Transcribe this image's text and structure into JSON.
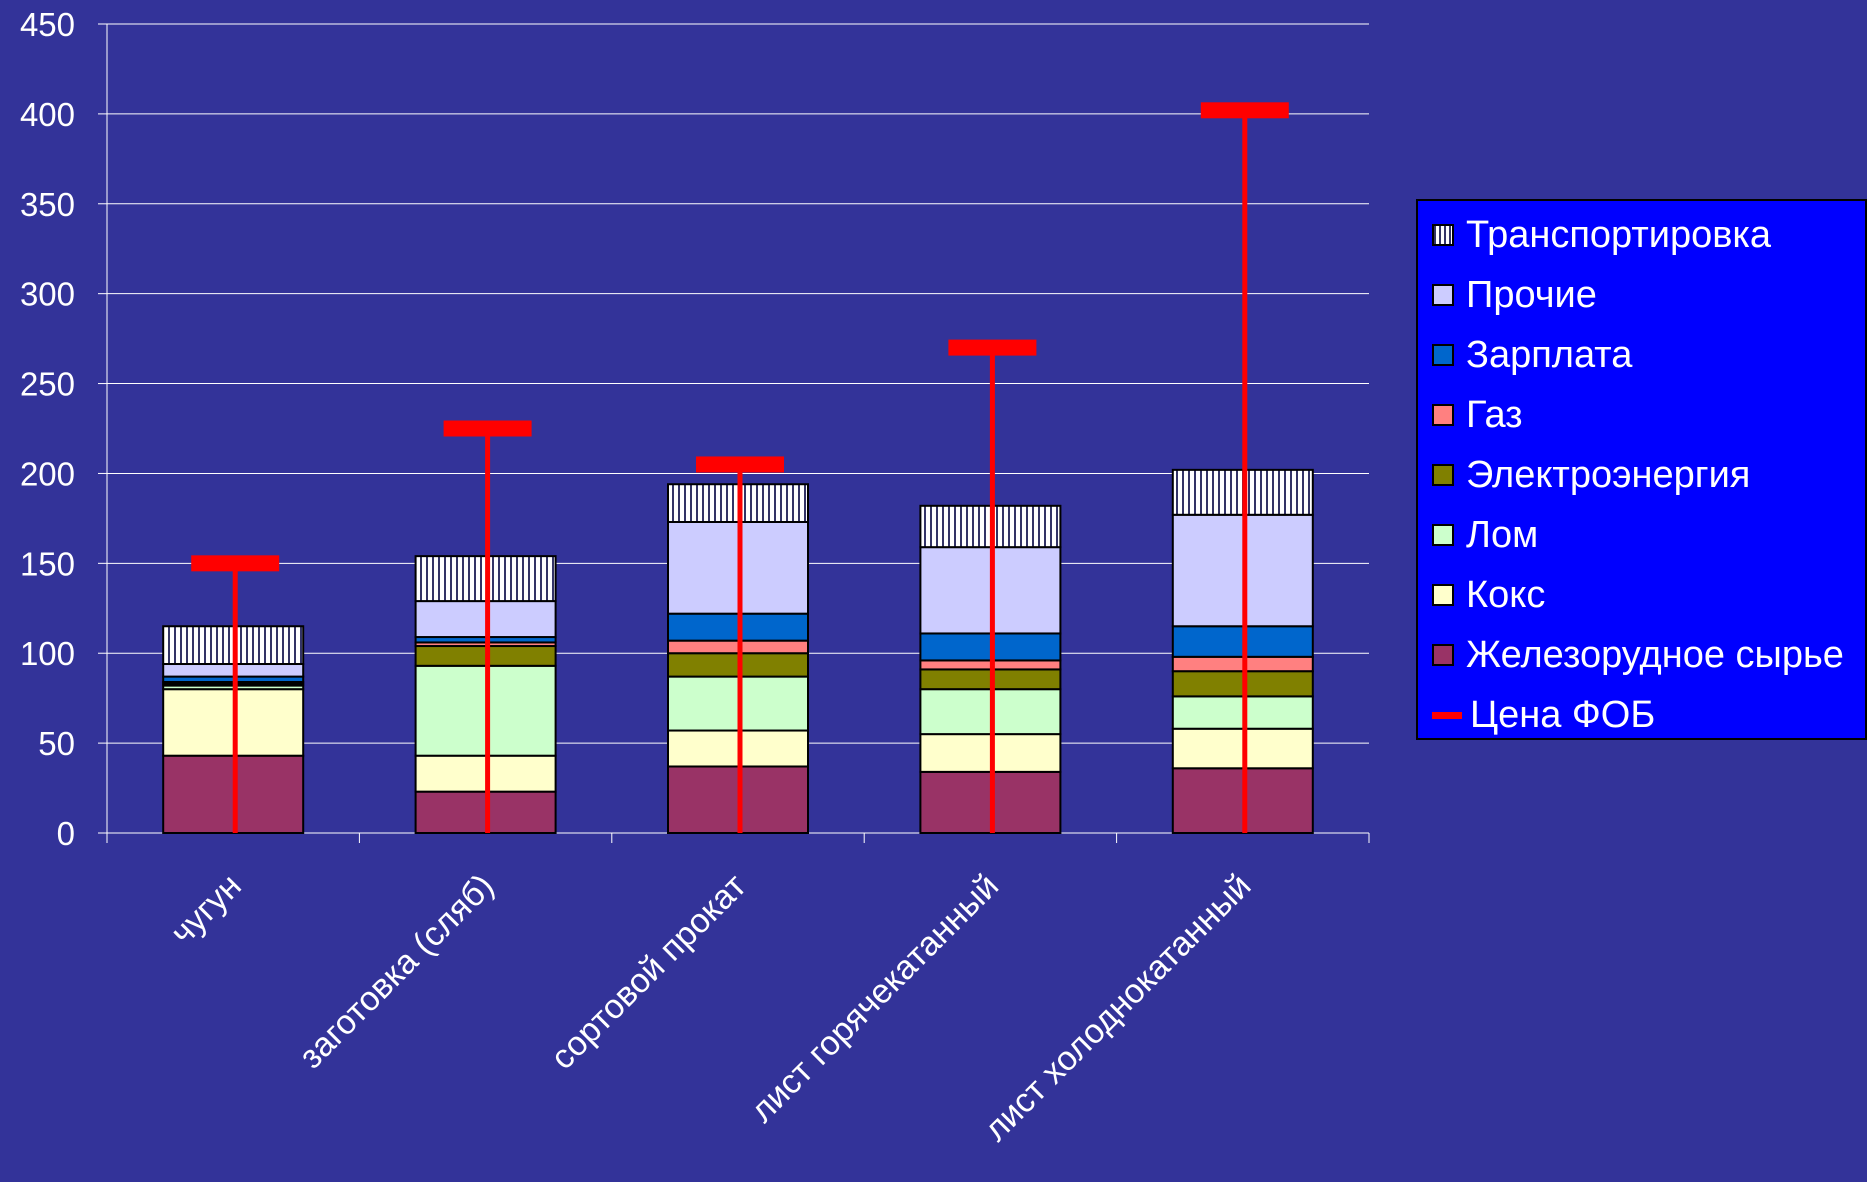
{
  "chart_data": {
    "type": "bar",
    "stacked": true,
    "title": "",
    "xlabel": "",
    "ylabel": "",
    "ylim": [
      0,
      450
    ],
    "yticks": [
      0,
      50,
      100,
      150,
      200,
      250,
      300,
      350,
      400,
      450
    ],
    "grid": true,
    "legend_position": "right",
    "categories": [
      "чугун",
      "заготовка (сляб)",
      "сортовой прокат",
      "лист горячекатанный",
      "лист холоднокатанный"
    ],
    "series": [
      {
        "name": "Железорудное сырье",
        "color": "#993366",
        "values": [
          43,
          23,
          37,
          34,
          36
        ]
      },
      {
        "name": "Кокс",
        "color": "#ffffcc",
        "values": [
          37,
          20,
          20,
          21,
          22
        ]
      },
      {
        "name": "Лом",
        "color": "#ccffcc",
        "values": [
          2,
          50,
          30,
          25,
          18
        ]
      },
      {
        "name": "Электроэнергия",
        "color": "#808000",
        "values": [
          1,
          11,
          13,
          11,
          14
        ]
      },
      {
        "name": "Газ",
        "color": "#ff8080",
        "values": [
          1,
          2,
          7,
          5,
          8
        ]
      },
      {
        "name": "Зарплата",
        "color": "#0066cc",
        "values": [
          3,
          3,
          15,
          15,
          17
        ]
      },
      {
        "name": "Прочие",
        "color": "#ccccff",
        "values": [
          7,
          20,
          51,
          48,
          62
        ]
      },
      {
        "name": "Транспортировка",
        "color": "#ffffff",
        "pattern": "vertical-hatch",
        "values": [
          21,
          25,
          21,
          23,
          25
        ]
      }
    ],
    "line_series": {
      "name": "Цена ФОБ",
      "color": "#ff0000",
      "values": [
        150,
        225,
        205,
        270,
        402
      ]
    }
  },
  "legend": {
    "items": [
      {
        "label": "Транспортировка",
        "color": "#ffffff",
        "kind": "hatch"
      },
      {
        "label": "Прочие",
        "color": "#ccccff",
        "kind": "box"
      },
      {
        "label": "Зарплата",
        "color": "#0066cc",
        "kind": "box"
      },
      {
        "label": "Газ",
        "color": "#ff8080",
        "kind": "box"
      },
      {
        "label": "Электроэнергия",
        "color": "#808000",
        "kind": "box"
      },
      {
        "label": "Лом",
        "color": "#ccffcc",
        "kind": "box"
      },
      {
        "label": "Кокс",
        "color": "#ffffcc",
        "kind": "box"
      },
      {
        "label": "Железорудное сырье",
        "color": "#993366",
        "kind": "box"
      },
      {
        "label": "Цена ФОБ",
        "color": "#ff0000",
        "kind": "line"
      }
    ]
  },
  "colors": {
    "background": "#333399",
    "grid": "#ffffff",
    "text": "#ffffff",
    "legend_bg": "#0000ff"
  }
}
